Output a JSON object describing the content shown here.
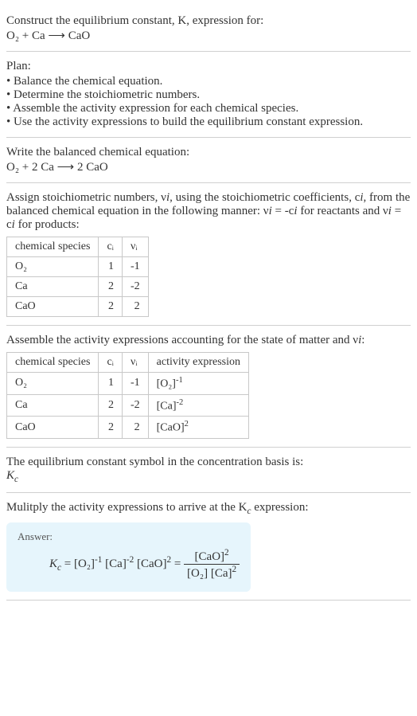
{
  "sec1": {
    "line1": "Construct the equilibrium constant, K, expression for:",
    "eq": "O₂ + Ca ⟶ CaO"
  },
  "plan": {
    "title": "Plan:",
    "items": [
      "Balance the chemical equation.",
      "Determine the stoichiometric numbers.",
      "Assemble the activity expression for each chemical species.",
      "Use the activity expressions to build the equilibrium constant expression."
    ]
  },
  "balanced": {
    "title": "Write the balanced chemical equation:",
    "eq": "O₂ + 2 Ca ⟶ 2 CaO"
  },
  "stoich": {
    "intro_a": "Assign stoichiometric numbers, ν",
    "intro_b": ", using the stoichiometric coefficients, c",
    "intro_c": ", from the balanced chemical equation in the following manner: ν",
    "intro_d": " = -c",
    "intro_e": " for reactants and ν",
    "intro_f": " = c",
    "intro_g": " for products:",
    "headers": [
      "chemical species",
      "cᵢ",
      "νᵢ"
    ],
    "rows": [
      [
        "O₂",
        "1",
        "-1"
      ],
      [
        "Ca",
        "2",
        "-2"
      ],
      [
        "CaO",
        "2",
        "2"
      ]
    ]
  },
  "activity": {
    "intro_a": "Assemble the activity expressions accounting for the state of matter and ν",
    "intro_b": ":",
    "headers": [
      "chemical species",
      "cᵢ",
      "νᵢ",
      "activity expression"
    ],
    "rows": [
      {
        "sp": "O₂",
        "c": "1",
        "v": "-1",
        "base": "[O₂]",
        "exp": "-1"
      },
      {
        "sp": "Ca",
        "c": "2",
        "v": "-2",
        "base": "[Ca]",
        "exp": "-2"
      },
      {
        "sp": "CaO",
        "c": "2",
        "v": "2",
        "base": "[CaO]",
        "exp": "2"
      }
    ]
  },
  "ksym": {
    "line": "The equilibrium constant symbol in the concentration basis is:",
    "sym": "K",
    "sub": "c"
  },
  "mult": {
    "line_a": "Mulitply the activity expressions to arrive at the K",
    "line_b": " expression:"
  },
  "answer": {
    "label": "Answer:",
    "K": "K",
    "csub": "c",
    "eq": " = ",
    "t1b": "[O₂]",
    "t1e": "-1",
    "t2b": "[Ca]",
    "t2e": "-2",
    "t3b": "[CaO]",
    "t3e": "2",
    "eq2": " = ",
    "numb": "[CaO]",
    "nume": "2",
    "denAb": "[O₂]",
    "denBb": "[Ca]",
    "denBe": "2"
  }
}
